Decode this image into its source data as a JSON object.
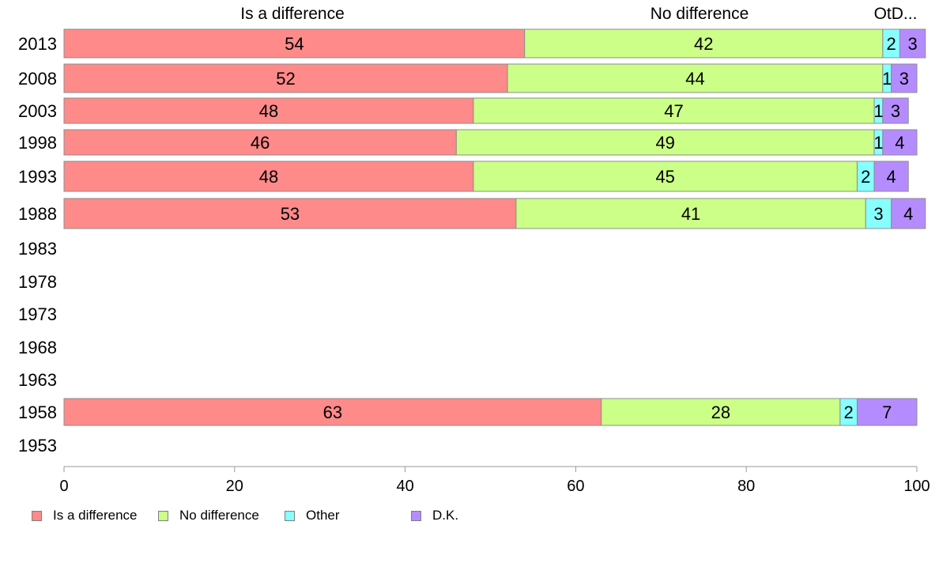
{
  "chart_data": {
    "type": "bar",
    "orientation": "horizontal",
    "stacked": true,
    "categories": [
      "2013",
      "2008",
      "2003",
      "1998",
      "1993",
      "1988",
      "1983",
      "1978",
      "1973",
      "1968",
      "1963",
      "1958",
      "1953"
    ],
    "series": [
      {
        "name": "Is a difference",
        "color": "#ff8a8a",
        "values": [
          54,
          52,
          48,
          46,
          48,
          53,
          null,
          null,
          null,
          null,
          null,
          63,
          null
        ]
      },
      {
        "name": "No difference",
        "color": "#ccff88",
        "values": [
          42,
          44,
          47,
          49,
          45,
          41,
          null,
          null,
          null,
          null,
          null,
          28,
          null
        ]
      },
      {
        "name": "Other",
        "color": "#88ffff",
        "values": [
          2,
          1,
          1,
          1,
          2,
          3,
          null,
          null,
          null,
          null,
          null,
          2,
          null
        ]
      },
      {
        "name": "D.K.",
        "color": "#b58cff",
        "values": [
          3,
          3,
          3,
          4,
          4,
          4,
          null,
          null,
          null,
          null,
          null,
          7,
          null
        ]
      }
    ],
    "column_headers": [
      "Is a difference",
      "No difference",
      "OtD..."
    ],
    "xlim": [
      0,
      100
    ],
    "xticks": [
      0,
      20,
      40,
      60,
      80,
      100
    ],
    "grid": false,
    "legend_position": "bottom"
  },
  "legend": {
    "items": [
      "Is a difference",
      "No difference",
      "Other",
      "D.K."
    ]
  }
}
